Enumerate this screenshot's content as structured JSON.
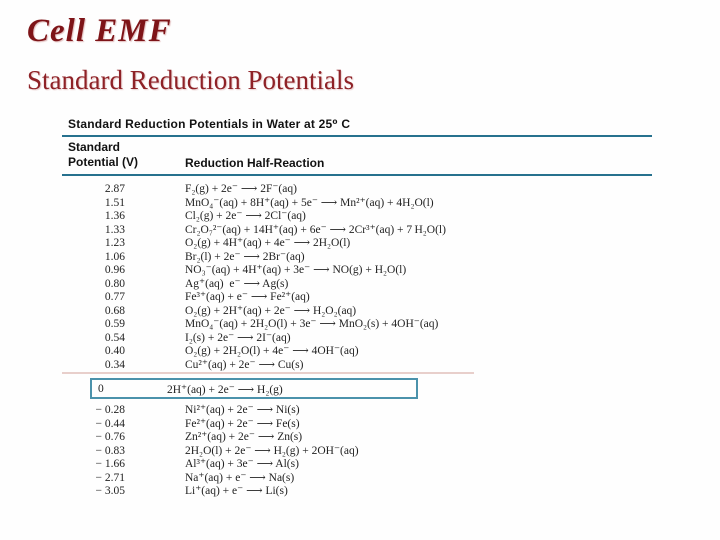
{
  "slide": {
    "title": "Cell EMF",
    "subtitle": "Standard Reduction Potentials"
  },
  "table": {
    "title": "Standard Reduction Potentials in Water at 25⁰ C",
    "col1_header_line1": "Standard",
    "col1_header_line2": "Potential (V)",
    "col2_header": "Reduction Half-Reaction",
    "positive_rows": [
      {
        "potential": "2.87",
        "reaction": "F₂(g) + 2e⁻ ⟶ 2F⁻(aq)"
      },
      {
        "potential": "1.51",
        "reaction": "MnO₄⁻(aq) + 8H⁺(aq) + 5e⁻ ⟶ Mn²⁺(aq) + 4H₂O(l)"
      },
      {
        "potential": "1.36",
        "reaction": "Cl₂(g) + 2e⁻ ⟶ 2Cl⁻(aq)"
      },
      {
        "potential": "1.33",
        "reaction": "Cr₂O₇²⁻(aq) + 14H⁺(aq) + 6e⁻ ⟶ 2Cr³⁺(aq) + 7 H₂O(l)"
      },
      {
        "potential": "1.23",
        "reaction": "O₂(g) + 4H⁺(aq) + 4e⁻ ⟶ 2H₂O(l)"
      },
      {
        "potential": "1.06",
        "reaction": "Br₂(l) + 2e⁻ ⟶ 2Br⁻(aq)"
      },
      {
        "potential": "0.96",
        "reaction": "NO₃⁻(aq) + 4H⁺(aq) + 3e⁻ ⟶ NO(g) + H₂O(l)"
      },
      {
        "potential": "0.80",
        "reaction": "Ag⁺(aq)  e⁻ ⟶ Ag(s)"
      },
      {
        "potential": "0.77",
        "reaction": "Fe³⁺(aq) + e⁻ ⟶ Fe²⁺(aq)"
      },
      {
        "potential": "0.68",
        "reaction": "O₂(g) + 2H⁺(aq) + 2e⁻ ⟶ H₂O₂(aq)"
      },
      {
        "potential": "0.59",
        "reaction": "MnO₄⁻(aq) + 2H₂O(l) + 3e⁻ ⟶ MnO₂(s) + 4OH⁻(aq)"
      },
      {
        "potential": "0.54",
        "reaction": "I₂(s) + 2e⁻ ⟶ 2I⁻(aq)"
      },
      {
        "potential": "0.40",
        "reaction": "O₂(g) + 2H₂O(l) + 4e⁻ ⟶ 4OH⁻(aq)"
      },
      {
        "potential": "0.34",
        "reaction": "Cu²⁺(aq) + 2e⁻ ⟶ Cu(s)"
      }
    ],
    "hydrogen_row": {
      "potential": "0",
      "reaction": "2H⁺(aq) + 2e⁻ ⟶ H₂(g)"
    },
    "negative_rows": [
      {
        "potential": "− 0.28",
        "reaction": "Ni²⁺(aq) + 2e⁻ ⟶ Ni(s)"
      },
      {
        "potential": "− 0.44",
        "reaction": "Fe²⁺(aq) + 2e⁻ ⟶ Fe(s)"
      },
      {
        "potential": "− 0.76",
        "reaction": "Zn²⁺(aq) + 2e⁻ ⟶ Zn(s)"
      },
      {
        "potential": "− 0.83",
        "reaction": "2H₂O(l) + 2e⁻ ⟶ H₂(g) + 2OH⁻(aq)"
      },
      {
        "potential": "− 1.66",
        "reaction": "Al³⁺(aq) + 3e⁻ ⟶ Al(s)"
      },
      {
        "potential": "− 2.71",
        "reaction": "Na⁺(aq) + e⁻ ⟶ Na(s)"
      },
      {
        "potential": "− 3.05",
        "reaction": "Li⁺(aq) + e⁻ ⟶ Li(s)"
      }
    ]
  },
  "colors": {
    "title_maroon": "#7e1418",
    "subtitle_maroon": "#8e2227",
    "rule_teal": "#27718e",
    "box_border_teal": "#4b92ab",
    "section_divider_pink": "#e8cfcb",
    "background": "#fefefe",
    "table_text": "#222222"
  }
}
